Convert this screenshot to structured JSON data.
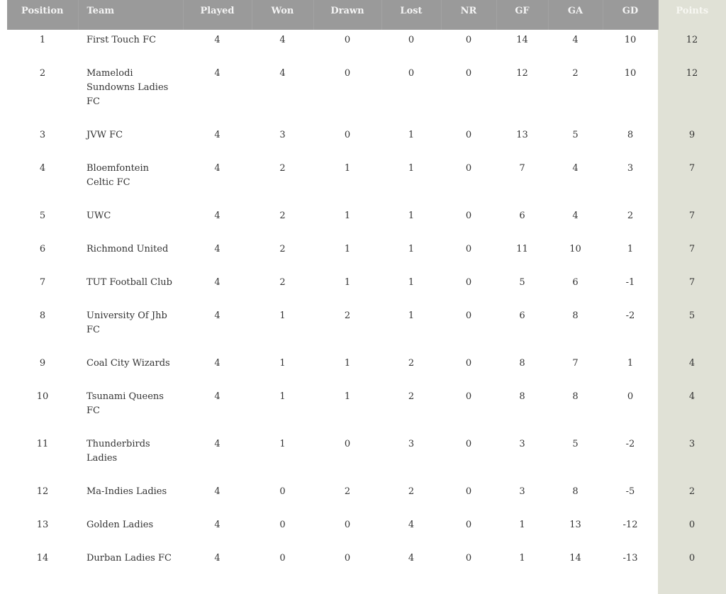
{
  "colors": {
    "header_bg": "#9a9a9a",
    "points_column_bg": "#e0e1d6",
    "text": "#333333"
  },
  "columns": [
    "Position",
    "Team",
    "Played",
    "Won",
    "Drawn",
    "Lost",
    "NR",
    "GF",
    "GA",
    "GD",
    "Points"
  ],
  "rows": [
    [
      "1",
      "First Touch FC",
      "4",
      "4",
      "0",
      "0",
      "0",
      "14",
      "4",
      "10",
      "12"
    ],
    [
      "2",
      "Mamelodi Sundowns Ladies FC",
      "4",
      "4",
      "0",
      "0",
      "0",
      "12",
      "2",
      "10",
      "12"
    ],
    [
      "3",
      "JVW FC",
      "4",
      "3",
      "0",
      "1",
      "0",
      "13",
      "5",
      "8",
      "9"
    ],
    [
      "4",
      "Bloemfontein Celtic FC",
      "4",
      "2",
      "1",
      "1",
      "0",
      "7",
      "4",
      "3",
      "7"
    ],
    [
      "5",
      "UWC",
      "4",
      "2",
      "1",
      "1",
      "0",
      "6",
      "4",
      "2",
      "7"
    ],
    [
      "6",
      "Richmond United",
      "4",
      "2",
      "1",
      "1",
      "0",
      "11",
      "10",
      "1",
      "7"
    ],
    [
      "7",
      "TUT Football Club",
      "4",
      "2",
      "1",
      "1",
      "0",
      "5",
      "6",
      "-1",
      "7"
    ],
    [
      "8",
      "University Of Jhb FC",
      "4",
      "1",
      "2",
      "1",
      "0",
      "6",
      "8",
      "-2",
      "5"
    ],
    [
      "9",
      "Coal City Wizards",
      "4",
      "1",
      "1",
      "2",
      "0",
      "8",
      "7",
      "1",
      "4"
    ],
    [
      "10",
      "Tsunami Queens FC",
      "4",
      "1",
      "1",
      "2",
      "0",
      "8",
      "8",
      "0",
      "4"
    ],
    [
      "11",
      "Thunderbirds Ladies",
      "4",
      "1",
      "0",
      "3",
      "0",
      "3",
      "5",
      "-2",
      "3"
    ],
    [
      "12",
      "Ma-Indies Ladies",
      "4",
      "0",
      "2",
      "2",
      "0",
      "3",
      "8",
      "-5",
      "2"
    ],
    [
      "13",
      "Golden Ladies",
      "4",
      "0",
      "0",
      "4",
      "0",
      "1",
      "13",
      "-12",
      "0"
    ],
    [
      "14",
      "Durban Ladies FC",
      "4",
      "0",
      "0",
      "4",
      "0",
      "1",
      "14",
      "-13",
      "0"
    ]
  ]
}
